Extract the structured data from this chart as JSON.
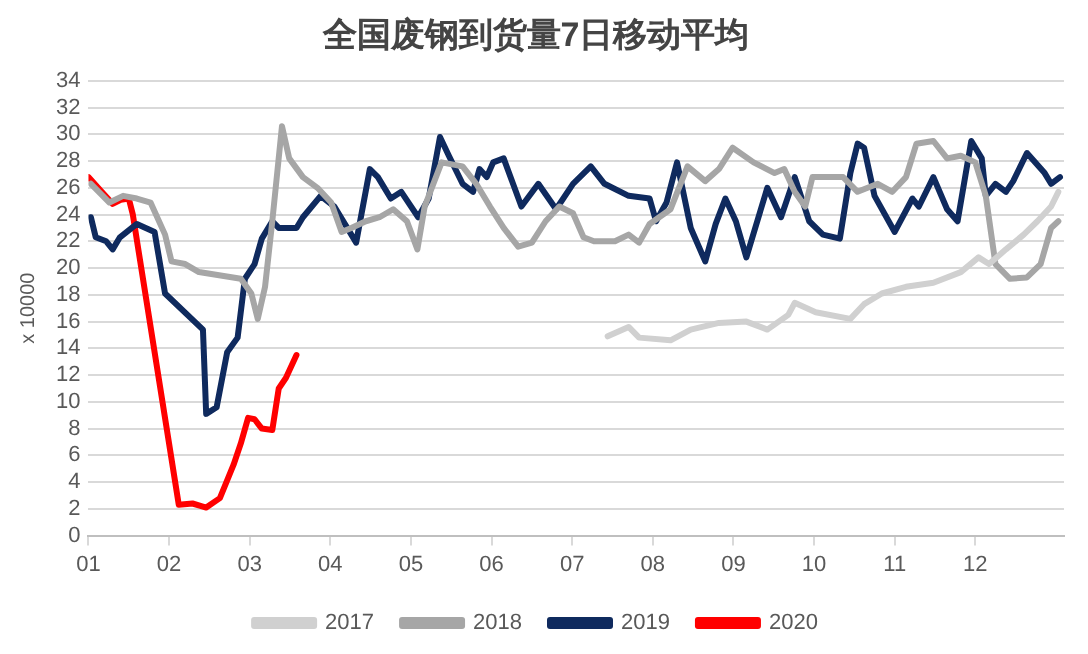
{
  "chart_data": {
    "type": "line",
    "title": "全国废钢到货量7日移动平均",
    "ylabel": "x 10000",
    "xlim": [
      1,
      13.1
    ],
    "xticks": [
      {
        "value": 1,
        "label": "01"
      },
      {
        "value": 2,
        "label": "02"
      },
      {
        "value": 3,
        "label": "03"
      },
      {
        "value": 4,
        "label": "04"
      },
      {
        "value": 5,
        "label": "05"
      },
      {
        "value": 6,
        "label": "06"
      },
      {
        "value": 7,
        "label": "07"
      },
      {
        "value": 8,
        "label": "08"
      },
      {
        "value": 9,
        "label": "09"
      },
      {
        "value": 10,
        "label": "10"
      },
      {
        "value": 11,
        "label": "11"
      },
      {
        "value": 12,
        "label": "12"
      }
    ],
    "ylim": [
      0,
      34
    ],
    "yticks": [
      0,
      2,
      4,
      6,
      8,
      10,
      12,
      14,
      16,
      18,
      20,
      22,
      24,
      26,
      28,
      30,
      32,
      34
    ],
    "grid": "y",
    "legend": "bottom",
    "marker": "none",
    "line_style": "solid",
    "series": [
      {
        "name": "2017",
        "color": "#d0d0d0",
        "x": [
          7.44,
          7.7,
          7.83,
          8.22,
          8.47,
          8.82,
          9.16,
          9.42,
          9.68,
          9.76,
          10.02,
          10.45,
          10.62,
          10.84,
          11.14,
          11.48,
          11.82,
          12.04,
          12.17,
          12.38,
          12.6,
          12.77,
          12.94,
          13.03
        ],
        "values": [
          14.9,
          15.6,
          14.8,
          14.6,
          15.4,
          15.9,
          16.0,
          15.4,
          16.5,
          17.4,
          16.7,
          16.2,
          17.3,
          18.1,
          18.6,
          18.9,
          19.7,
          20.8,
          20.3,
          21.4,
          22.5,
          23.5,
          24.6,
          25.7
        ]
      },
      {
        "name": "2018",
        "color": "#a6a6a6",
        "x": [
          1.03,
          1.26,
          1.43,
          1.6,
          1.77,
          1.95,
          2.03,
          2.2,
          2.37,
          2.89,
          3.02,
          3.1,
          3.19,
          3.28,
          3.4,
          3.49,
          3.66,
          3.84,
          4.01,
          4.14,
          4.26,
          4.44,
          4.61,
          4.78,
          4.95,
          5.08,
          5.17,
          5.38,
          5.64,
          5.81,
          5.98,
          6.15,
          6.33,
          6.5,
          6.67,
          6.84,
          7.01,
          7.14,
          7.27,
          7.53,
          7.7,
          7.83,
          7.96,
          8.22,
          8.43,
          8.65,
          8.82,
          8.99,
          9.25,
          9.51,
          9.63,
          9.76,
          9.89,
          9.98,
          10.36,
          10.54,
          10.79,
          10.97,
          11.14,
          11.27,
          11.48,
          11.65,
          11.82,
          12.0,
          12.13,
          12.25,
          12.43,
          12.64,
          12.81,
          12.94,
          13.03
        ],
        "values": [
          26.3,
          24.9,
          25.4,
          25.2,
          24.9,
          22.5,
          20.5,
          20.3,
          19.7,
          19.2,
          18.1,
          16.2,
          18.6,
          23.5,
          30.6,
          28.2,
          26.8,
          26.0,
          24.9,
          22.7,
          23.0,
          23.5,
          23.8,
          24.4,
          23.5,
          21.4,
          24.6,
          27.9,
          27.6,
          26.3,
          24.6,
          23.0,
          21.6,
          21.9,
          23.5,
          24.6,
          24.1,
          22.3,
          22.0,
          22.0,
          22.5,
          21.9,
          23.3,
          24.4,
          27.6,
          26.5,
          27.4,
          29.0,
          27.9,
          27.1,
          27.4,
          25.7,
          24.6,
          26.8,
          26.8,
          25.7,
          26.3,
          25.7,
          26.8,
          29.3,
          29.5,
          28.2,
          28.4,
          27.9,
          25.4,
          20.3,
          19.2,
          19.3,
          20.3,
          23.0,
          23.5
        ]
      },
      {
        "name": "2019",
        "color": "#0f2a5e",
        "x": [
          1.03,
          1.09,
          1.22,
          1.3,
          1.39,
          1.6,
          1.82,
          1.95,
          2.42,
          2.46,
          2.59,
          2.72,
          2.85,
          2.94,
          3.06,
          3.15,
          3.28,
          3.36,
          3.58,
          3.66,
          3.88,
          4.05,
          4.32,
          4.49,
          4.59,
          4.75,
          4.88,
          5.09,
          5.22,
          5.36,
          5.47,
          5.64,
          5.77,
          5.85,
          5.94,
          6.02,
          6.15,
          6.37,
          6.58,
          6.8,
          7.01,
          7.23,
          7.4,
          7.7,
          7.96,
          8.04,
          8.17,
          8.3,
          8.47,
          8.65,
          8.78,
          8.9,
          9.03,
          9.16,
          9.42,
          9.59,
          9.76,
          9.94,
          10.11,
          10.32,
          10.45,
          10.54,
          10.62,
          10.75,
          11.0,
          11.22,
          11.3,
          11.48,
          11.65,
          11.78,
          11.95,
          12.08,
          12.13,
          12.25,
          12.38,
          12.47,
          12.64,
          12.86,
          12.94,
          13.05
        ],
        "values": [
          23.8,
          22.3,
          22.0,
          21.4,
          22.3,
          23.3,
          22.7,
          18.1,
          15.4,
          9.1,
          9.6,
          13.7,
          14.8,
          19.2,
          20.3,
          22.2,
          23.5,
          23.0,
          23.0,
          23.8,
          25.4,
          24.6,
          21.9,
          27.4,
          26.8,
          25.2,
          25.7,
          23.8,
          25.2,
          29.8,
          28.4,
          26.3,
          25.7,
          27.4,
          26.8,
          27.9,
          28.2,
          24.6,
          26.3,
          24.4,
          26.3,
          27.6,
          26.3,
          25.4,
          25.2,
          23.5,
          24.9,
          27.9,
          23.0,
          20.5,
          23.3,
          25.2,
          23.5,
          20.8,
          26.0,
          23.8,
          26.8,
          23.5,
          22.5,
          22.2,
          27.1,
          29.3,
          29.0,
          25.4,
          22.7,
          25.2,
          24.6,
          26.8,
          24.4,
          23.5,
          29.5,
          28.2,
          25.4,
          26.3,
          25.7,
          26.5,
          28.6,
          27.1,
          26.3,
          26.8
        ]
      },
      {
        "name": "2020",
        "color": "#ff0000",
        "x": [
          1.0,
          1.15,
          1.3,
          1.4,
          1.5,
          1.55,
          2.12,
          2.29,
          2.46,
          2.63,
          2.8,
          2.89,
          2.98,
          3.06,
          3.15,
          3.28,
          3.36,
          3.45,
          3.58
        ],
        "values": [
          26.8,
          25.8,
          24.8,
          25.1,
          25.2,
          24.0,
          2.3,
          2.4,
          2.1,
          2.8,
          5.3,
          6.9,
          8.8,
          8.7,
          8.0,
          7.9,
          11.0,
          11.8,
          13.5
        ]
      }
    ]
  }
}
